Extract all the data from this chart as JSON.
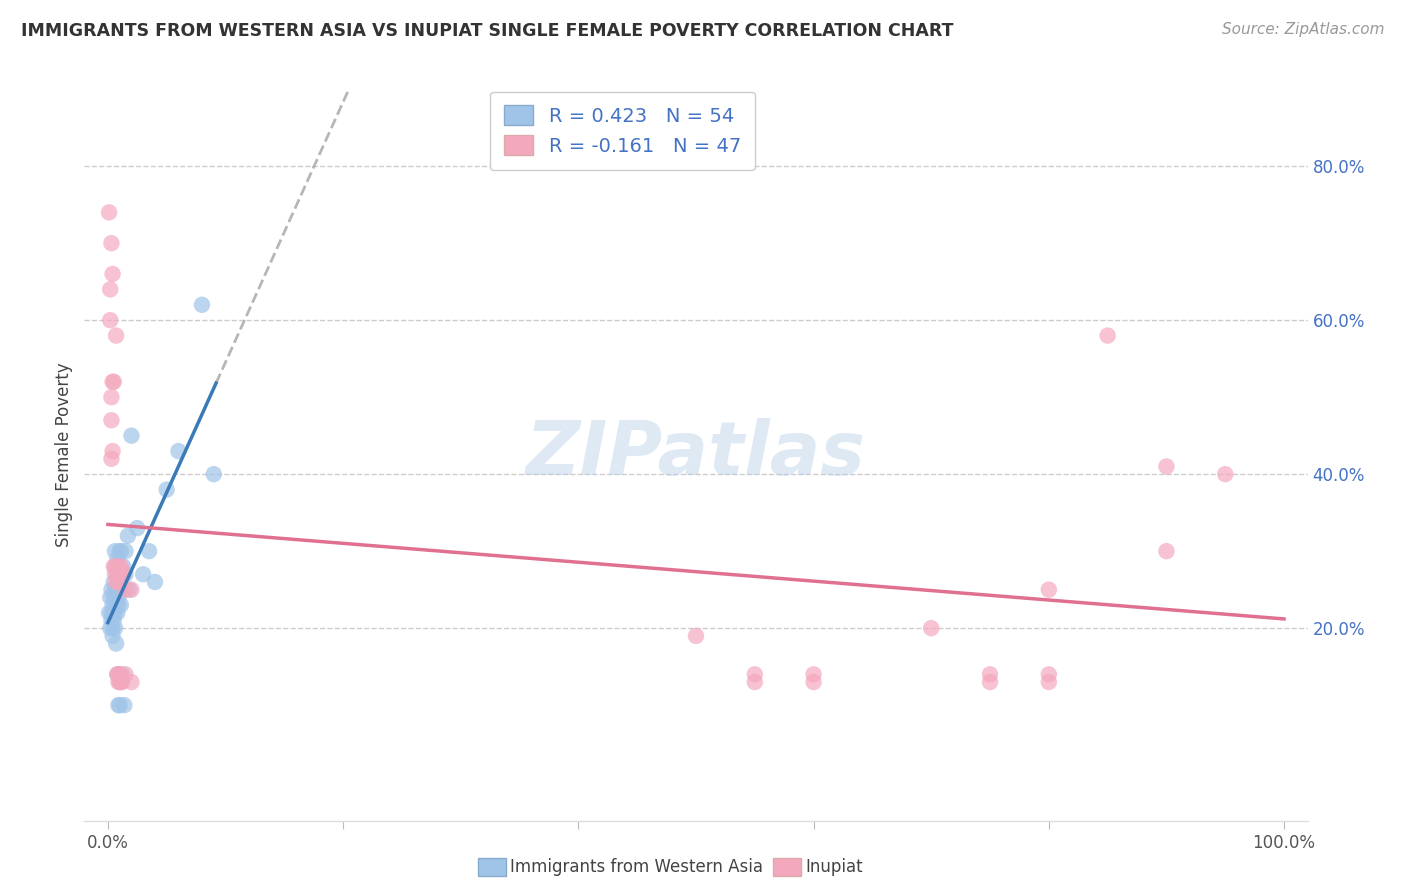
{
  "title": "IMMIGRANTS FROM WESTERN ASIA VS INUPIAT SINGLE FEMALE POVERTY CORRELATION CHART",
  "source": "Source: ZipAtlas.com",
  "ylabel": "Single Female Poverty",
  "watermark": "ZIPatlas",
  "legend_labels": [
    "Immigrants from Western Asia",
    "Inupiat"
  ],
  "blue_r": 0.423,
  "blue_n": 54,
  "pink_r": -0.161,
  "pink_n": 47,
  "blue_fill": "#a0c4e8",
  "pink_fill": "#f4a8be",
  "blue_line": "#3a7ab8",
  "pink_line": "#e07090",
  "dash_line": "#aaaaaa",
  "blue_scatter_x": [
    0.001,
    0.002,
    0.002,
    0.003,
    0.003,
    0.003,
    0.004,
    0.004,
    0.004,
    0.005,
    0.005,
    0.005,
    0.005,
    0.006,
    0.006,
    0.006,
    0.006,
    0.007,
    0.007,
    0.007,
    0.007,
    0.008,
    0.008,
    0.008,
    0.008,
    0.008,
    0.009,
    0.009,
    0.009,
    0.009,
    0.01,
    0.01,
    0.01,
    0.01,
    0.011,
    0.011,
    0.012,
    0.012,
    0.013,
    0.013,
    0.014,
    0.015,
    0.015,
    0.017,
    0.018,
    0.02,
    0.025,
    0.03,
    0.035,
    0.04,
    0.05,
    0.06,
    0.08,
    0.09
  ],
  "blue_scatter_y": [
    0.22,
    0.24,
    0.2,
    0.25,
    0.22,
    0.21,
    0.23,
    0.2,
    0.19,
    0.26,
    0.22,
    0.24,
    0.21,
    0.3,
    0.25,
    0.22,
    0.2,
    0.28,
    0.25,
    0.23,
    0.18,
    0.29,
    0.27,
    0.25,
    0.22,
    0.14,
    0.27,
    0.24,
    0.23,
    0.1,
    0.3,
    0.27,
    0.25,
    0.1,
    0.3,
    0.23,
    0.27,
    0.14,
    0.28,
    0.25,
    0.1,
    0.3,
    0.27,
    0.32,
    0.25,
    0.45,
    0.33,
    0.27,
    0.3,
    0.26,
    0.38,
    0.43,
    0.62,
    0.4
  ],
  "pink_scatter_x": [
    0.001,
    0.002,
    0.002,
    0.003,
    0.003,
    0.003,
    0.003,
    0.004,
    0.004,
    0.004,
    0.005,
    0.005,
    0.006,
    0.006,
    0.007,
    0.007,
    0.008,
    0.008,
    0.009,
    0.009,
    0.01,
    0.01,
    0.01,
    0.011,
    0.011,
    0.012,
    0.012,
    0.013,
    0.015,
    0.015,
    0.02,
    0.02,
    0.5,
    0.55,
    0.55,
    0.6,
    0.6,
    0.7,
    0.75,
    0.75,
    0.8,
    0.8,
    0.8,
    0.85,
    0.9,
    0.9,
    0.95
  ],
  "pink_scatter_y": [
    0.74,
    0.64,
    0.6,
    0.7,
    0.5,
    0.47,
    0.42,
    0.66,
    0.52,
    0.43,
    0.52,
    0.28,
    0.28,
    0.27,
    0.58,
    0.26,
    0.26,
    0.14,
    0.14,
    0.13,
    0.28,
    0.14,
    0.13,
    0.28,
    0.13,
    0.27,
    0.13,
    0.27,
    0.25,
    0.14,
    0.25,
    0.13,
    0.19,
    0.14,
    0.13,
    0.14,
    0.13,
    0.2,
    0.14,
    0.13,
    0.25,
    0.14,
    0.13,
    0.58,
    0.41,
    0.3,
    0.4
  ],
  "xlim": [
    -0.02,
    1.02
  ],
  "ylim": [
    -0.05,
    0.9
  ],
  "ytick_right_vals": [
    0.2,
    0.4,
    0.6,
    0.8
  ],
  "ytick_right_labels": [
    "20.0%",
    "40.0%",
    "60.0%",
    "80.0%"
  ],
  "xtick_vals": [
    0.0,
    0.2,
    0.4,
    0.6,
    0.8,
    1.0
  ],
  "xtick_labels": [
    "0.0%",
    "",
    "",
    "",
    "",
    "100.0%"
  ],
  "background_color": "#ffffff",
  "grid_color": "#cccccc",
  "title_fontsize": 12.5,
  "source_fontsize": 11,
  "tick_fontsize": 12,
  "legend_fontsize": 14
}
